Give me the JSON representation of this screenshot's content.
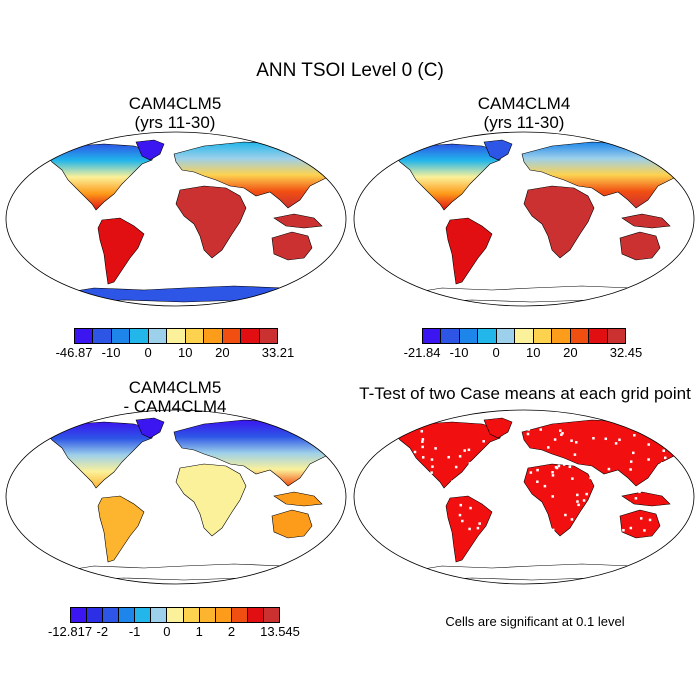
{
  "figure": {
    "title": "ANN TSOI Level 0 (C)",
    "note": "Cells are significant at 0.1 level"
  },
  "panels": [
    {
      "title1": "CAM4CLM5",
      "title2": "(yrs 11-30)"
    },
    {
      "title1": "CAM4CLM4",
      "title2": "(yrs 11-30)"
    },
    {
      "title1": "CAM4CLM5",
      "title2": "- CAM4CLM4"
    },
    {
      "title1": "T-Test of two Case means at each grid point",
      "title2": ""
    }
  ],
  "colorbars": [
    {
      "colors": [
        "#3b16f0",
        "#2d55e6",
        "#1e86ea",
        "#22b6ea",
        "#9dd0ea",
        "#fbf19a",
        "#fdd24f",
        "#fd9b1a",
        "#f14f12",
        "#e10e12",
        "#cb3131"
      ],
      "labels": [
        "-46.87",
        "-10",
        "0",
        "10",
        "20",
        "33.21"
      ]
    },
    {
      "colors": [
        "#3b16f0",
        "#2d55e6",
        "#1e86ea",
        "#22b6ea",
        "#9dd0ea",
        "#fbf19a",
        "#fdd24f",
        "#fd9b1a",
        "#f14f12",
        "#e10e12",
        "#cb3131"
      ],
      "labels": [
        "-21.84",
        "-10",
        "0",
        "10",
        "20",
        "32.45"
      ]
    },
    {
      "colors": [
        "#3b16f0",
        "#2b2fe6",
        "#2d55e6",
        "#1e86ea",
        "#22b6ea",
        "#9dd0ea",
        "#fbf19a",
        "#fdd24f",
        "#fdb42f",
        "#fd9b1a",
        "#f14f12",
        "#e10e12",
        "#cb3131"
      ],
      "labels": [
        "-12.817",
        "-2",
        "-1",
        "0",
        "1",
        "2",
        "13.545"
      ]
    }
  ]
}
